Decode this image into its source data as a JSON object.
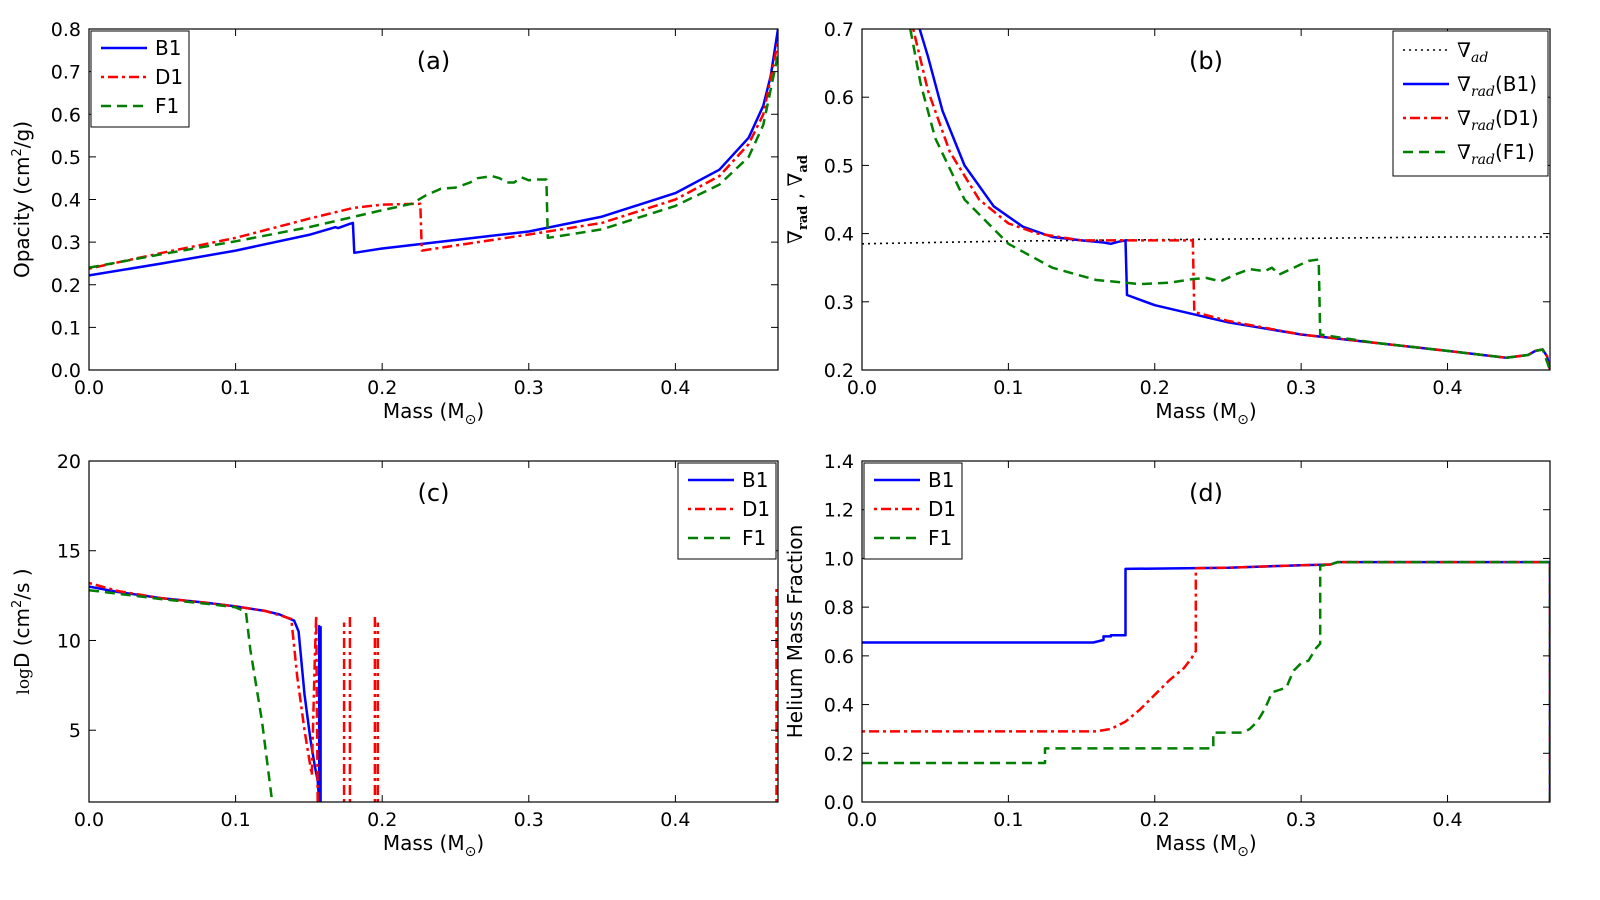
{
  "colors": {
    "B1": "#0000ff",
    "D1": "#ff0000",
    "F1": "#007f00",
    "ad": "#000000"
  },
  "chart_data": [
    {
      "type": "line",
      "panel_label": "(a)",
      "xlabel": "Mass (M",
      "xlabel_sub": "⊙",
      "xlabel_close": ")",
      "ylabel": "Opacity (cm",
      "ylabel_sup": "2",
      "ylabel_rest": "/g)",
      "xlim": [
        0,
        0.47
      ],
      "ylim": [
        0,
        0.8
      ],
      "xticks": [
        "0.0",
        "0.1",
        "0.2",
        "0.3",
        "0.4"
      ],
      "yticks": [
        "0.0",
        "0.1",
        "0.2",
        "0.3",
        "0.4",
        "0.5",
        "0.6",
        "0.7",
        "0.8"
      ],
      "legend": {
        "position": "top-left",
        "entries": [
          "B1",
          "D1",
          "F1"
        ]
      },
      "series": [
        {
          "name": "B1",
          "style": "solid",
          "x": [
            0,
            0.05,
            0.1,
            0.15,
            0.168,
            0.17,
            0.178,
            0.18,
            0.181,
            0.2,
            0.25,
            0.3,
            0.35,
            0.4,
            0.43,
            0.45,
            0.46,
            0.465,
            0.47
          ],
          "y": [
            0.222,
            0.25,
            0.28,
            0.317,
            0.335,
            0.333,
            0.343,
            0.345,
            0.275,
            0.285,
            0.305,
            0.325,
            0.36,
            0.415,
            0.47,
            0.545,
            0.62,
            0.69,
            0.8
          ]
        },
        {
          "name": "D1",
          "style": "dashdot",
          "x": [
            0,
            0.05,
            0.1,
            0.15,
            0.18,
            0.2,
            0.226,
            0.227,
            0.25,
            0.3,
            0.35,
            0.4,
            0.43,
            0.45,
            0.46,
            0.47
          ],
          "y": [
            0.238,
            0.275,
            0.31,
            0.355,
            0.38,
            0.388,
            0.39,
            0.28,
            0.292,
            0.318,
            0.345,
            0.4,
            0.455,
            0.53,
            0.6,
            0.77
          ]
        },
        {
          "name": "F1",
          "style": "dashed",
          "x": [
            0,
            0.05,
            0.1,
            0.15,
            0.2,
            0.22,
            0.23,
            0.24,
            0.25,
            0.26,
            0.265,
            0.275,
            0.28,
            0.285,
            0.29,
            0.295,
            0.3,
            0.305,
            0.312,
            0.313,
            0.35,
            0.4,
            0.43,
            0.45,
            0.46,
            0.47
          ],
          "y": [
            0.24,
            0.272,
            0.302,
            0.335,
            0.375,
            0.39,
            0.41,
            0.425,
            0.428,
            0.44,
            0.45,
            0.455,
            0.45,
            0.44,
            0.44,
            0.452,
            0.445,
            0.447,
            0.447,
            0.31,
            0.33,
            0.385,
            0.435,
            0.5,
            0.575,
            0.74
          ]
        }
      ]
    },
    {
      "type": "line",
      "panel_label": "(b)",
      "xlabel": "Mass (M",
      "xlabel_sub": "⊙",
      "xlabel_close": ")",
      "ylabel_nabla": "∇",
      "ylabel_rad": "rad",
      "ylabel_sep": " , ",
      "ylabel_ad": "ad",
      "xlim": [
        0,
        0.47
      ],
      "ylim": [
        0.2,
        0.7
      ],
      "xticks": [
        "0.0",
        "0.1",
        "0.2",
        "0.3",
        "0.4"
      ],
      "yticks": [
        "0.2",
        "0.3",
        "0.4",
        "0.5",
        "0.6",
        "0.7"
      ],
      "legend": {
        "position": "top-right",
        "entries": [
          {
            "nabla": "∇",
            "sub": "ad",
            "tail": ""
          },
          {
            "nabla": "∇",
            "sub": "rad",
            "tail": "(B1)"
          },
          {
            "nabla": "∇",
            "sub": "rad",
            "tail": "(D1)"
          },
          {
            "nabla": "∇",
            "sub": "rad",
            "tail": "(F1)"
          }
        ]
      },
      "series": [
        {
          "name": "∇ad",
          "style": "dotted",
          "x": [
            0,
            0.1,
            0.2,
            0.3,
            0.4,
            0.47
          ],
          "y": [
            0.385,
            0.389,
            0.391,
            0.393,
            0.395,
            0.395
          ]
        },
        {
          "name": "∇rad(B1)",
          "style": "solid",
          "x": [
            0.038,
            0.045,
            0.055,
            0.07,
            0.09,
            0.11,
            0.13,
            0.15,
            0.165,
            0.17,
            0.175,
            0.18,
            0.181,
            0.2,
            0.25,
            0.3,
            0.35,
            0.4,
            0.44,
            0.455,
            0.46,
            0.465,
            0.468,
            0.47
          ],
          "y": [
            0.71,
            0.66,
            0.58,
            0.5,
            0.44,
            0.41,
            0.395,
            0.39,
            0.387,
            0.385,
            0.388,
            0.39,
            0.31,
            0.295,
            0.27,
            0.252,
            0.24,
            0.228,
            0.218,
            0.222,
            0.228,
            0.23,
            0.22,
            0.2
          ]
        },
        {
          "name": "∇rad(D1)",
          "style": "dashdot",
          "x": [
            0.035,
            0.045,
            0.06,
            0.08,
            0.1,
            0.12,
            0.15,
            0.2,
            0.226,
            0.227,
            0.25,
            0.3,
            0.35,
            0.4,
            0.44,
            0.455,
            0.46,
            0.465,
            0.468,
            0.47
          ],
          "y": [
            0.7,
            0.61,
            0.52,
            0.45,
            0.415,
            0.4,
            0.39,
            0.39,
            0.39,
            0.285,
            0.272,
            0.252,
            0.24,
            0.228,
            0.218,
            0.222,
            0.228,
            0.23,
            0.22,
            0.2
          ]
        },
        {
          "name": "∇rad(F1)",
          "style": "dashed",
          "x": [
            0.033,
            0.04,
            0.05,
            0.07,
            0.1,
            0.13,
            0.16,
            0.19,
            0.21,
            0.225,
            0.235,
            0.245,
            0.255,
            0.265,
            0.275,
            0.28,
            0.285,
            0.295,
            0.3,
            0.305,
            0.312,
            0.313,
            0.35,
            0.4,
            0.44,
            0.455,
            0.46,
            0.465,
            0.47
          ],
          "y": [
            0.7,
            0.62,
            0.54,
            0.45,
            0.385,
            0.35,
            0.332,
            0.326,
            0.328,
            0.333,
            0.335,
            0.33,
            0.34,
            0.348,
            0.345,
            0.35,
            0.34,
            0.35,
            0.355,
            0.36,
            0.362,
            0.252,
            0.24,
            0.228,
            0.218,
            0.222,
            0.228,
            0.23,
            0.2
          ]
        }
      ]
    },
    {
      "type": "line",
      "panel_label": "(c)",
      "xlabel": "Mass (M",
      "xlabel_sub": "⊙",
      "xlabel_close": ")",
      "ylabel_log": "log",
      "ylabel_rest": "D (cm",
      "ylabel_sup": "2",
      "ylabel_end": "/s )",
      "xlim": [
        0,
        0.47
      ],
      "ylim": [
        1,
        20
      ],
      "xticks": [
        "0.0",
        "0.1",
        "0.2",
        "0.3",
        "0.4"
      ],
      "yticks": [
        "5",
        "10",
        "15",
        "20"
      ],
      "ytick_values": [
        5,
        10,
        15,
        20
      ],
      "legend": {
        "position": "top-right",
        "entries": [
          "B1",
          "D1",
          "F1"
        ]
      },
      "series": [
        {
          "name": "B1",
          "style": "solid",
          "segments": [
            {
              "x": [
                0,
                0.02,
                0.05,
                0.08,
                0.1,
                0.12,
                0.13,
                0.14,
                0.143,
                0.147,
                0.151,
                0.154,
                0.156,
                0.157,
                0.157,
                0.157,
                0.158,
                0.158
              ],
              "y": [
                13,
                12.7,
                12.35,
                12.1,
                11.9,
                11.65,
                11.45,
                11.1,
                10.5,
                7,
                4.5,
                3,
                2.2,
                1,
                10.8,
                1,
                1,
                10.8
              ]
            }
          ]
        },
        {
          "name": "D1",
          "style": "dashdot",
          "segments": [
            {
              "x": [
                0,
                0.02,
                0.05,
                0.08,
                0.1,
                0.12,
                0.13,
                0.138,
                0.142,
                0.147,
                0.152,
                0.154,
                0.155,
                0.156
              ],
              "y": [
                13.2,
                12.75,
                12.35,
                12.1,
                11.9,
                11.65,
                11.4,
                11.2,
                8,
                5,
                2.5,
                9,
                11.4,
                1
              ]
            },
            {
              "x": [
                0.174,
                0.174
              ],
              "y": [
                1,
                11
              ]
            },
            {
              "x": [
                0.178,
                0.178
              ],
              "y": [
                1,
                11.4
              ]
            },
            {
              "x": [
                0.195,
                0.195
              ],
              "y": [
                1,
                11.4
              ]
            },
            {
              "x": [
                0.197,
                0.197
              ],
              "y": [
                1,
                11
              ]
            },
            {
              "x": [
                0.469,
                0.469
              ],
              "y": [
                1,
                13
              ]
            }
          ]
        },
        {
          "name": "F1",
          "style": "dashed",
          "segments": [
            {
              "x": [
                0,
                0.02,
                0.05,
                0.08,
                0.1,
                0.107,
                0.11,
                0.118,
                0.125
              ],
              "y": [
                12.8,
                12.6,
                12.3,
                12.05,
                11.85,
                11.6,
                9.5,
                5.5,
                1
              ]
            }
          ]
        }
      ]
    },
    {
      "type": "line",
      "panel_label": "(d)",
      "xlabel": "Mass (M",
      "xlabel_sub": "⊙",
      "xlabel_close": ")",
      "ylabel": "Helium Mass Fraction",
      "xlim": [
        0,
        0.47
      ],
      "ylim": [
        0,
        1.4
      ],
      "xticks": [
        "0.0",
        "0.1",
        "0.2",
        "0.3",
        "0.4"
      ],
      "yticks": [
        "0.0",
        "0.2",
        "0.4",
        "0.6",
        "0.8",
        "1.0",
        "1.2",
        "1.4"
      ],
      "legend": {
        "position": "top-left",
        "entries": [
          "B1",
          "D1",
          "F1"
        ]
      },
      "series": [
        {
          "name": "B1",
          "style": "solid",
          "x": [
            0,
            0.158,
            0.165,
            0.165,
            0.17,
            0.17,
            0.18,
            0.18,
            0.25,
            0.3,
            0.32,
            0.325,
            0.47,
            0.47
          ],
          "y": [
            0.655,
            0.655,
            0.665,
            0.68,
            0.68,
            0.685,
            0.685,
            0.957,
            0.962,
            0.972,
            0.975,
            0.985,
            0.985,
            0
          ]
        },
        {
          "name": "D1",
          "style": "dashdot",
          "x": [
            0,
            0.16,
            0.17,
            0.18,
            0.19,
            0.2,
            0.21,
            0.22,
            0.225,
            0.228,
            0.228,
            0.25,
            0.3,
            0.32,
            0.325,
            0.47,
            0.47
          ],
          "y": [
            0.29,
            0.29,
            0.3,
            0.33,
            0.38,
            0.44,
            0.5,
            0.55,
            0.59,
            0.62,
            0.96,
            0.962,
            0.972,
            0.975,
            0.985,
            0.985,
            0
          ]
        },
        {
          "name": "F1",
          "style": "dashed",
          "x": [
            0,
            0.125,
            0.125,
            0.24,
            0.24,
            0.26,
            0.265,
            0.27,
            0.275,
            0.278,
            0.28,
            0.285,
            0.29,
            0.292,
            0.295,
            0.3,
            0.305,
            0.31,
            0.313,
            0.313,
            0.32,
            0.325,
            0.47,
            0.47
          ],
          "y": [
            0.16,
            0.16,
            0.22,
            0.22,
            0.285,
            0.285,
            0.3,
            0.33,
            0.38,
            0.42,
            0.45,
            0.46,
            0.47,
            0.5,
            0.54,
            0.57,
            0.58,
            0.63,
            0.65,
            0.97,
            0.975,
            0.985,
            0.985,
            0
          ]
        }
      ]
    }
  ]
}
